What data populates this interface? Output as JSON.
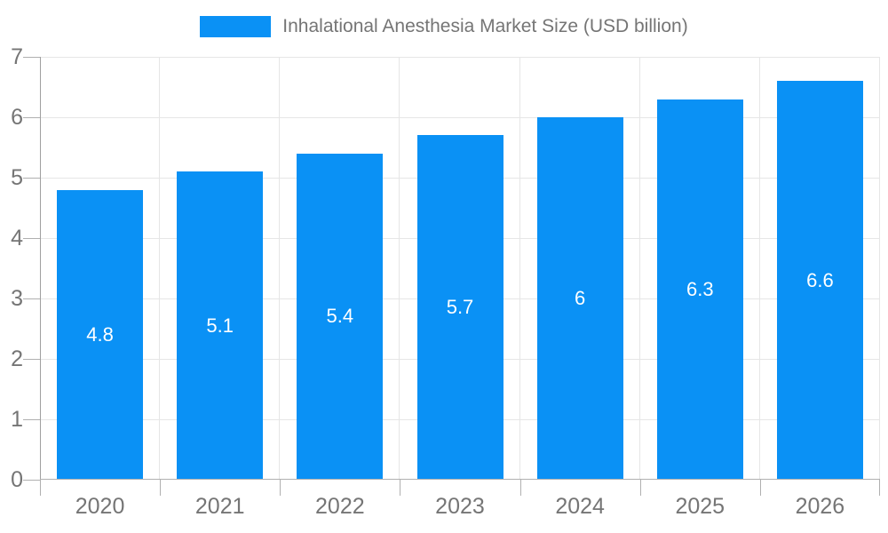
{
  "chart_data": {
    "type": "bar",
    "title": "Inhalational Anesthesia Market Size (USD billion)",
    "legend": {
      "position": "top",
      "label": "Inhalational Anesthesia Market Size (USD billion)"
    },
    "categories": [
      "2020",
      "2021",
      "2022",
      "2023",
      "2024",
      "2025",
      "2026"
    ],
    "series": [
      {
        "name": "Inhalational Anesthesia Market Size (USD billion)",
        "values": [
          4.8,
          5.1,
          5.4,
          5.7,
          6,
          6.3,
          6.6
        ],
        "value_labels": [
          "4.8",
          "5.1",
          "5.4",
          "5.7",
          "6",
          "6.3",
          "6.6"
        ]
      }
    ],
    "xlabel": "",
    "ylabel": "",
    "ylim": [
      0,
      7
    ],
    "y_ticks": [
      0,
      1,
      2,
      3,
      4,
      5,
      6,
      7
    ],
    "grid": "on",
    "colors": {
      "bar": "#0a91f5",
      "bar_value_text": "#ffffff",
      "axis_text": "#757575",
      "legend_text": "#757575",
      "gridline": "#e6e6e6",
      "axis_line": "#a8a8a8"
    }
  }
}
